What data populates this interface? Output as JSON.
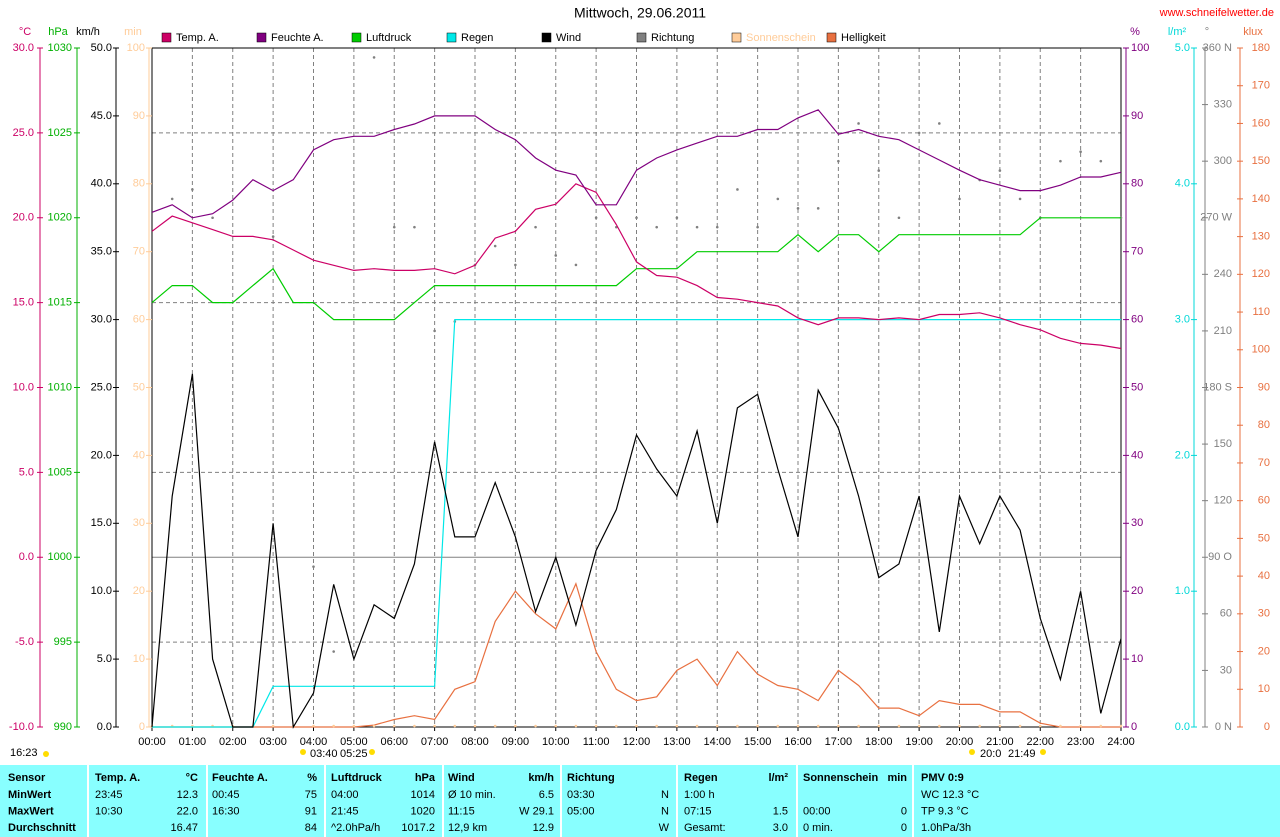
{
  "chart_data": {
    "type": "line",
    "title": "Mittwoch, 29.06.2011",
    "source": "www.schneifelwetter.de",
    "grid": true,
    "xlim": [
      0,
      24
    ],
    "xticks": [
      {
        "value": 0,
        "label": "00:00"
      },
      {
        "value": 1,
        "label": "01:00"
      },
      {
        "value": 2,
        "label": "02:00"
      },
      {
        "value": 3,
        "label": "03:00"
      },
      {
        "value": 4,
        "label": "04:00"
      },
      {
        "value": 5,
        "label": "05:00"
      },
      {
        "value": 6,
        "label": "06:00"
      },
      {
        "value": 7,
        "label": "07:00"
      },
      {
        "value": 8,
        "label": "08:00"
      },
      {
        "value": 9,
        "label": "09:00"
      },
      {
        "value": 10,
        "label": "10:00"
      },
      {
        "value": 11,
        "label": "11:00"
      },
      {
        "value": 12,
        "label": "12:00"
      },
      {
        "value": 13,
        "label": "13:00"
      },
      {
        "value": 14,
        "label": "14:00"
      },
      {
        "value": 15,
        "label": "15:00"
      },
      {
        "value": 16,
        "label": "16:00"
      },
      {
        "value": 17,
        "label": "17:00"
      },
      {
        "value": 18,
        "label": "18:00"
      },
      {
        "value": 19,
        "label": "19:00"
      },
      {
        "value": 20,
        "label": "20:00"
      },
      {
        "value": 21,
        "label": "21:00"
      },
      {
        "value": 22,
        "label": "22:00"
      },
      {
        "value": 23,
        "label": "23:00"
      },
      {
        "value": 24,
        "label": "24:00"
      }
    ],
    "axes": [
      {
        "label": "°C",
        "color": "#cc0066",
        "lim": [
          -10,
          30
        ],
        "ticks": [
          {
            "value": -10,
            "label": "-10.0"
          },
          {
            "value": -5,
            "label": "-5.0"
          },
          {
            "value": 0,
            "label": "0.0"
          },
          {
            "value": 5,
            "label": "5.0"
          },
          {
            "value": 10,
            "label": "10.0"
          },
          {
            "value": 15,
            "label": "15.0"
          },
          {
            "value": 20,
            "label": "20.0"
          },
          {
            "value": 25,
            "label": "25.0"
          },
          {
            "value": 30,
            "label": "30.0"
          }
        ]
      },
      {
        "label": "hPa",
        "color": "#00b000",
        "lim": [
          990,
          1030
        ],
        "ticks": [
          990,
          995,
          1000,
          1005,
          1010,
          1015,
          1020,
          1025,
          1030
        ]
      },
      {
        "label": "km/h",
        "color": "#000000",
        "lim": [
          0,
          50
        ],
        "ticks": [
          {
            "value": 0,
            "label": "0.0"
          },
          {
            "value": 5,
            "label": "5.0"
          },
          {
            "value": 10,
            "label": "10.0"
          },
          {
            "value": 15,
            "label": "15.0"
          },
          {
            "value": 20,
            "label": "20.0"
          },
          {
            "value": 25,
            "label": "25.0"
          },
          {
            "value": 30,
            "label": "30.0"
          },
          {
            "value": 35,
            "label": "35.0"
          },
          {
            "value": 40,
            "label": "40.0"
          },
          {
            "value": 45,
            "label": "45.0"
          },
          {
            "value": 50,
            "label": "50.0"
          }
        ]
      },
      {
        "label": "min",
        "color": "#ffcc99",
        "lim": [
          0,
          100
        ],
        "ticks": [
          0,
          10,
          20,
          30,
          40,
          50,
          60,
          70,
          80,
          90,
          100
        ]
      },
      {
        "label": "%",
        "color": "#800080",
        "lim": [
          0,
          100
        ],
        "ticks": [
          0,
          10,
          20,
          30,
          40,
          50,
          60,
          70,
          80,
          90,
          100
        ]
      },
      {
        "label": "l/m²",
        "color": "#00d8d8",
        "lim": [
          0,
          5
        ],
        "ticks": [
          {
            "value": 0,
            "label": "0.0"
          },
          {
            "value": 1,
            "label": "1.0"
          },
          {
            "value": 2,
            "label": "2.0"
          },
          {
            "value": 3,
            "label": "3.0"
          },
          {
            "value": 4,
            "label": "4.0"
          },
          {
            "value": 5,
            "label": "5.0"
          }
        ]
      },
      {
        "label": "°",
        "color": "#808080",
        "lim": [
          0,
          360
        ],
        "ticks": [
          {
            "value": 0,
            "label": "0 N"
          },
          30,
          60,
          {
            "value": 90,
            "label": "90 O"
          },
          120,
          150,
          {
            "value": 180,
            "label": "180 S"
          },
          210,
          240,
          {
            "value": 270,
            "label": "270 W"
          },
          300,
          330,
          {
            "value": 360,
            "label": "360 N"
          }
        ]
      },
      {
        "label": "klux",
        "color": "#e87040",
        "lim": [
          0,
          180
        ],
        "ticks": [
          0,
          10,
          20,
          30,
          40,
          50,
          60,
          70,
          80,
          90,
          100,
          110,
          120,
          130,
          140,
          150,
          160,
          170,
          180
        ]
      }
    ],
    "x": [
      0,
      0.5,
      1,
      1.5,
      2,
      2.5,
      3,
      3.5,
      4,
      4.5,
      5,
      5.5,
      6,
      6.5,
      7,
      7.5,
      8,
      8.5,
      9,
      9.5,
      10,
      10.5,
      11,
      11.5,
      12,
      12.5,
      13,
      13.5,
      14,
      14.5,
      15,
      15.5,
      16,
      16.5,
      17,
      17.5,
      18,
      18.5,
      19,
      19.5,
      20,
      20.5,
      21,
      21.5,
      22,
      22.5,
      23,
      23.5,
      24
    ],
    "series": [
      {
        "name": "Temp. A.",
        "color": "#cc0066",
        "axis": 0,
        "style": "line",
        "values": [
          19.2,
          20.1,
          19.7,
          19.3,
          18.9,
          18.9,
          18.7,
          18.1,
          17.5,
          17.2,
          16.9,
          17.0,
          16.9,
          16.9,
          17.0,
          16.7,
          17.2,
          18.8,
          19.2,
          20.5,
          20.8,
          22.0,
          21.5,
          19.6,
          17.4,
          16.6,
          16.5,
          16.0,
          15.3,
          15.2,
          15.0,
          14.8,
          14.1,
          13.7,
          14.1,
          14.1,
          14.0,
          14.1,
          14.0,
          14.3,
          14.3,
          14.4,
          14.1,
          13.7,
          13.4,
          12.9,
          12.6,
          12.5,
          12.3
        ]
      },
      {
        "name": "Feuchte A.",
        "color": "#800080",
        "axis": 4,
        "style": "line",
        "values": [
          75.8,
          76.9,
          75.0,
          75.6,
          77.6,
          80.6,
          79.0,
          80.6,
          85.0,
          86.5,
          87.0,
          87.0,
          88.0,
          88.8,
          90.0,
          90.0,
          90.0,
          88.0,
          86.5,
          83.8,
          82.0,
          81.3,
          76.9,
          76.9,
          82.0,
          83.8,
          85.0,
          86.0,
          87.0,
          87.0,
          88.0,
          88.0,
          89.7,
          90.9,
          87.3,
          88.0,
          87.0,
          86.5,
          85.0,
          83.5,
          82.0,
          80.6,
          79.8,
          79.0,
          79.0,
          79.8,
          81.0,
          81.0,
          81.7
        ]
      },
      {
        "name": "Luftdruck",
        "color": "#00cc00",
        "axis": 1,
        "style": "line",
        "values": [
          1015,
          1016,
          1016,
          1015,
          1015,
          1016,
          1017,
          1015,
          1015,
          1014,
          1014,
          1014,
          1014,
          1015,
          1016,
          1016,
          1016,
          1016,
          1016,
          1016,
          1016,
          1016,
          1016,
          1016,
          1017,
          1017,
          1017,
          1018,
          1018,
          1018,
          1018,
          1018,
          1019,
          1018,
          1019,
          1019,
          1018,
          1019,
          1019,
          1019,
          1019,
          1019,
          1019,
          1019,
          1020,
          1020,
          1020,
          1020,
          1020
        ]
      },
      {
        "name": "Regen",
        "color": "#00e8e8",
        "axis": 5,
        "style": "line",
        "values": [
          0,
          0,
          0,
          0,
          0,
          0,
          0.3,
          0.3,
          0.3,
          0.3,
          0.3,
          0.3,
          0.3,
          0.3,
          0.3,
          3.0,
          3.0,
          3.0,
          3.0,
          3.0,
          3.0,
          3.0,
          3.0,
          3.0,
          3.0,
          3.0,
          3.0,
          3.0,
          3.0,
          3.0,
          3.0,
          3.0,
          3.0,
          3.0,
          3.0,
          3.0,
          3.0,
          3.0,
          3.0,
          3.0,
          3.0,
          3.0,
          3.0,
          3.0,
          3.0,
          3.0,
          3.0,
          3.0,
          3.0
        ]
      },
      {
        "name": "Wind",
        "color": "#000000",
        "axis": 2,
        "style": "line",
        "values": [
          0,
          17,
          26,
          5,
          0,
          0,
          15,
          0,
          2.5,
          10.5,
          5,
          9,
          8,
          12,
          21,
          14,
          14,
          18,
          14,
          8.5,
          12.5,
          7.5,
          13,
          16,
          21.5,
          19,
          17,
          21.8,
          15,
          23.5,
          24.5,
          19,
          14,
          24.8,
          22,
          17,
          11,
          12,
          17,
          7,
          17,
          13.5,
          17,
          14.5,
          8,
          3.5,
          10,
          1,
          6.5
        ]
      },
      {
        "name": "Richtung",
        "color": "#808080",
        "axis": 6,
        "style": "dots",
        "values": [
          null,
          280,
          285,
          270,
          null,
          null,
          260,
          null,
          85,
          40,
          40,
          355,
          265,
          265,
          210,
          215,
          245,
          255,
          245,
          265,
          250,
          245,
          270,
          265,
          270,
          265,
          270,
          265,
          265,
          285,
          265,
          280,
          275,
          275,
          300,
          320,
          295,
          270,
          315,
          320,
          280,
          290,
          295,
          280,
          270,
          300,
          305,
          300,
          270
        ]
      },
      {
        "name": "Sonnenschein",
        "color": "#ffcc99",
        "axis": 3,
        "style": "dots",
        "values": [
          0,
          0,
          0,
          0,
          0,
          0,
          0,
          0,
          0,
          0,
          0,
          0,
          0,
          0,
          0,
          0,
          0,
          0,
          0,
          0,
          0,
          0,
          0,
          0,
          0,
          0,
          0,
          0,
          0,
          0,
          0,
          0,
          0,
          0,
          0,
          0,
          0,
          0,
          0,
          0,
          0,
          0,
          0,
          0,
          0,
          0,
          0,
          0,
          0
        ]
      },
      {
        "name": "Helligkeit",
        "color": "#e87040",
        "axis": 7,
        "style": "line",
        "values": [
          0,
          0,
          0,
          0,
          0,
          0,
          0,
          0,
          0,
          0,
          0,
          0.5,
          2,
          3,
          2,
          10,
          12,
          28,
          36,
          30,
          26,
          38,
          20,
          10,
          7,
          8,
          15,
          18,
          11,
          20,
          14,
          11,
          10,
          7,
          15,
          11,
          5,
          5,
          3,
          7,
          6,
          6,
          4,
          4,
          1,
          0,
          0,
          0,
          0
        ]
      }
    ],
    "astro": [
      "16:23",
      "03:40",
      "05:25",
      "20:0",
      "21:49"
    ]
  },
  "table": {
    "header": [
      "Sensor",
      "Temp. A.",
      "°C",
      "Feuchte A.",
      "%",
      "Luftdruck",
      "hPa",
      "Wind",
      "km/h",
      "Richtung",
      null,
      "Regen",
      "l/m²",
      "Sonnenschein",
      "min",
      "PMV 0:9"
    ],
    "rows": [
      [
        "MinWert",
        "23:45",
        "12.3",
        "00:45",
        "75",
        "04:00",
        "1014",
        "Ø 10 min.",
        "6.5",
        "03:30",
        "N",
        "1:00 h",
        null,
        null,
        null,
        "WC 12.3 °C"
      ],
      [
        "MaxWert",
        "10:30",
        "22.0",
        "16:30",
        "91",
        "21:45",
        "1020",
        "11:15",
        "W 29.1",
        "05:00",
        "N",
        "07:15",
        "1.5",
        "00:00",
        "0",
        "TP 9.3 °C"
      ],
      [
        "Durchschnitt",
        null,
        "16.47",
        null,
        "84",
        "^2.0hPa/h",
        "1017.2",
        "12,9 km",
        "12.9",
        null,
        "W",
        "Gesamt:",
        "3.0",
        "0 min.",
        "0",
        "1.0hPa/3h"
      ]
    ]
  }
}
